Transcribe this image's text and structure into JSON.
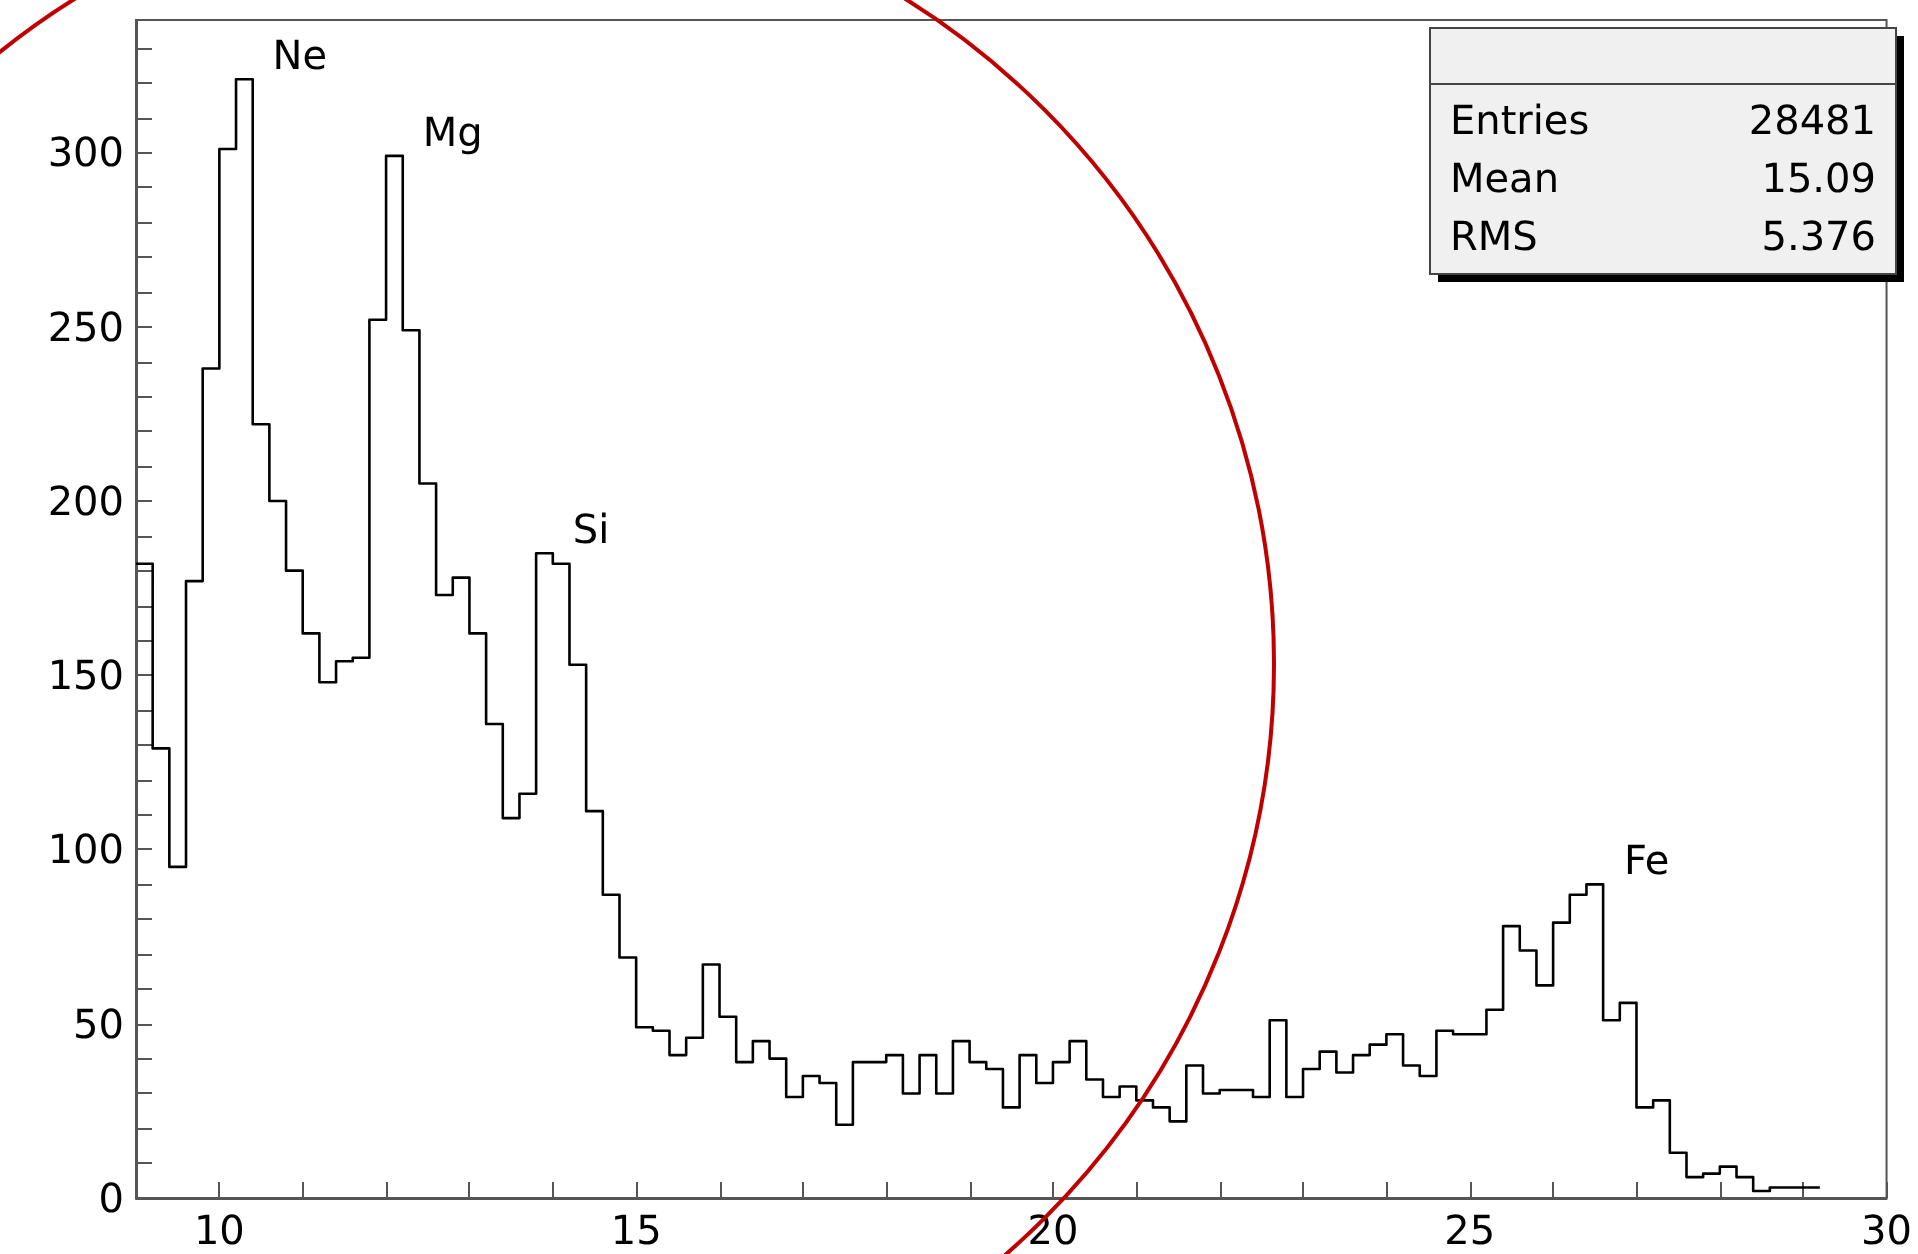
{
  "chart_data": {
    "type": "histogram",
    "bins": [
      9.0,
      9.2,
      9.4,
      9.6,
      9.8,
      10.0,
      10.2,
      10.4,
      10.6,
      10.8,
      11.0,
      11.2,
      11.4,
      11.6,
      11.8,
      12.0,
      12.2,
      12.4,
      12.6,
      12.8,
      13.0,
      13.2,
      13.4,
      13.6,
      13.8,
      14.0,
      14.2,
      14.4,
      14.6,
      14.8,
      15.0,
      15.2,
      15.4,
      15.6,
      15.8,
      16.0,
      16.2,
      16.4,
      16.6,
      16.8,
      17.0,
      17.2,
      17.4,
      17.6,
      17.8,
      18.0,
      18.2,
      18.4,
      18.6,
      18.8,
      19.0,
      19.2,
      19.4,
      19.6,
      19.8,
      20.0,
      20.2,
      20.4,
      20.6,
      20.8,
      21.0,
      21.2,
      21.4,
      21.6,
      21.8,
      22.0,
      22.2,
      22.4,
      22.6,
      22.8,
      23.0,
      23.2,
      23.4,
      23.6,
      23.8,
      24.0,
      24.2,
      24.4,
      24.6,
      24.8,
      25.0,
      25.2,
      25.4,
      25.6,
      25.8,
      26.0,
      26.2,
      26.4,
      26.6,
      26.8,
      27.0,
      27.2,
      27.4,
      27.6,
      27.8,
      28.0,
      28.2,
      28.4,
      28.6,
      28.8,
      29.0,
      29.2
    ],
    "values": [
      182,
      129,
      95,
      177,
      238,
      301,
      321,
      222,
      200,
      180,
      162,
      148,
      154,
      155,
      252,
      299,
      249,
      205,
      173,
      178,
      162,
      136,
      109,
      116,
      185,
      182,
      153,
      111,
      87,
      69,
      49,
      48,
      41,
      46,
      67,
      52,
      39,
      45,
      40,
      29,
      35,
      33,
      21,
      39,
      39,
      41,
      30,
      41,
      30,
      45,
      39,
      37,
      26,
      41,
      33,
      39,
      45,
      34,
      29,
      32,
      28,
      26,
      22,
      38,
      30,
      31,
      31,
      29,
      51,
      29,
      37,
      42,
      36,
      41,
      44,
      47,
      38,
      35,
      48,
      47,
      47,
      54,
      78,
      71,
      61,
      79,
      87,
      90,
      51,
      56,
      26,
      28,
      13,
      6,
      7,
      9,
      6,
      2,
      3,
      3,
      3
    ],
    "color": "#000000",
    "xlim": [
      9,
      30
    ],
    "xticks": [
      10,
      15,
      20,
      25,
      30
    ],
    "ylim": [
      0,
      338
    ],
    "yticks": [
      0,
      50,
      100,
      150,
      200,
      250,
      300
    ],
    "grid": false,
    "annotations": [
      {
        "text": "Ne",
        "x": 10.3,
        "y": 321
      },
      {
        "text": "Mg",
        "x": 12.1,
        "y": 299
      },
      {
        "text": "Si",
        "x": 13.9,
        "y": 185
      },
      {
        "text": "Fe",
        "x": 26.5,
        "y": 90
      },
      "Entries 28481",
      "Mean 15.09",
      "RMS 5.376"
    ]
  }
}
